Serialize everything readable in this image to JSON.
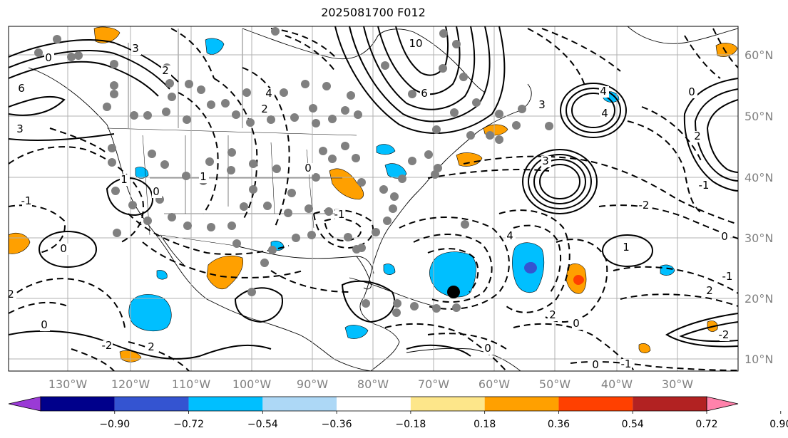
{
  "title": "2025081700 F012",
  "map": {
    "lon_ticks": [
      "130°W",
      "120°W",
      "110°W",
      "100°W",
      "90°W",
      "80°W",
      "70°W",
      "60°W",
      "50°W",
      "40°W",
      "30°W"
    ],
    "lat_ticks": [
      "60°N",
      "50°N",
      "40°N",
      "30°N",
      "20°N",
      "10°N"
    ],
    "contour_labels": [
      "3",
      "2",
      "0",
      "6",
      "3",
      "1",
      "0",
      "-1",
      "0",
      "2",
      "4",
      "2",
      "1",
      "0",
      "-1",
      "0",
      "-2",
      "2",
      "4",
      "6",
      "10",
      "3",
      "4",
      "3",
      "4",
      "-2",
      "2",
      "0",
      "1",
      "-1",
      "0",
      "-1",
      "2",
      "-2",
      "2",
      "0",
      "0",
      "0",
      "-1"
    ]
  },
  "colorbar": {
    "tick_labels": [
      "−0.90",
      "−0.72",
      "−0.54",
      "−0.36",
      "−0.18",
      "0.18",
      "0.36",
      "0.54",
      "0.72",
      "0.90"
    ],
    "colors": [
      "#9a3ad6",
      "#00008b",
      "#3454d1",
      "#00bfff",
      "#add8f6",
      "#ffffff",
      "#fde68a",
      "#ffa000",
      "#ff4000",
      "#b22222",
      "#ff82ab"
    ]
  },
  "colors": {
    "shade_neg_strong": "#3454d1",
    "shade_neg": "#00bfff",
    "shade_pos": "#ffa000",
    "shade_pos_strong": "#ff4000",
    "station_dot": "#808080",
    "grid": "#b0b0b0"
  }
}
